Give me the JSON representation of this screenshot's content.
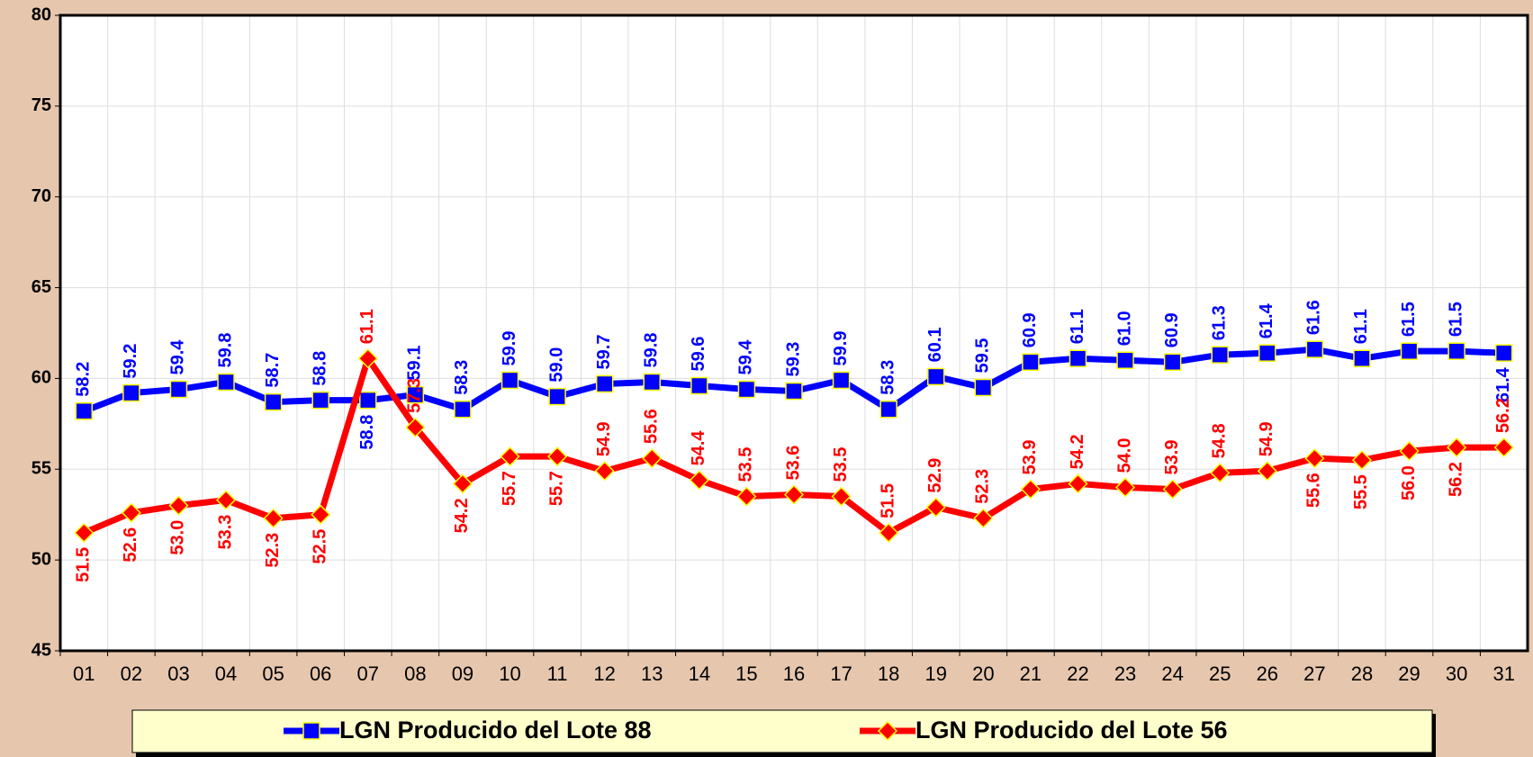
{
  "chart_data": {
    "type": "line",
    "categories": [
      "01",
      "02",
      "03",
      "04",
      "05",
      "06",
      "07",
      "08",
      "09",
      "10",
      "11",
      "12",
      "13",
      "14",
      "15",
      "16",
      "17",
      "18",
      "19",
      "20",
      "21",
      "22",
      "23",
      "24",
      "25",
      "26",
      "27",
      "28",
      "29",
      "30",
      "31"
    ],
    "series": [
      {
        "name": "LGN Producido del Lote 88",
        "color": "#0000ff",
        "marker": "square",
        "values": [
          58.2,
          59.2,
          59.4,
          59.8,
          58.7,
          58.8,
          58.8,
          59.1,
          58.3,
          59.9,
          59.0,
          59.7,
          59.8,
          59.6,
          59.4,
          59.3,
          59.9,
          58.3,
          60.1,
          59.5,
          60.9,
          61.1,
          61.0,
          60.9,
          61.3,
          61.4,
          61.6,
          61.1,
          61.5,
          61.5,
          61.4
        ],
        "value_labels": [
          "58.2",
          "59.2",
          "59.4",
          "59.8",
          "58.7",
          "58.8",
          "58.8",
          "59.1",
          "58.3",
          "59.9",
          "59.0",
          "59.7",
          "59.8",
          "59.6",
          "59.4",
          "59.3",
          "59.9",
          "58.3",
          "60.1",
          "59.5",
          "60.9",
          "61.1",
          "61.0",
          "60.9",
          "61.3",
          "61.4",
          "61.6",
          "61.1",
          "61.5",
          "61.5",
          "61.4"
        ]
      },
      {
        "name": "LGN Producido del Lote 56",
        "color": "#ff0000",
        "marker": "diamond",
        "values": [
          51.5,
          52.6,
          53.0,
          53.3,
          52.3,
          52.5,
          61.1,
          57.3,
          54.2,
          55.7,
          55.7,
          54.9,
          55.6,
          54.4,
          53.5,
          53.6,
          53.5,
          51.5,
          52.9,
          52.3,
          53.9,
          54.2,
          54.0,
          53.9,
          54.8,
          54.9,
          55.6,
          55.5,
          56.0,
          56.2,
          56.2
        ],
        "value_labels": [
          "51.5",
          "52.6",
          "53.0",
          "53.3",
          "52.3",
          "52.5",
          "61.1",
          "57.3",
          "54.2",
          "55.7",
          "55.7",
          "54.9",
          "55.6",
          "54.4",
          "53.5",
          "53.6",
          "53.5",
          "51.5",
          "52.9",
          "52.3",
          "53.9",
          "54.2",
          "54.0",
          "53.9",
          "54.8",
          "54.9",
          "55.6",
          "55.5",
          "56.0",
          "56.2",
          "56.2"
        ]
      }
    ],
    "ylim": [
      45,
      80
    ],
    "yticks": [
      45,
      50,
      55,
      60,
      65,
      70,
      75,
      80
    ],
    "grid": true,
    "legend": "bottom"
  }
}
